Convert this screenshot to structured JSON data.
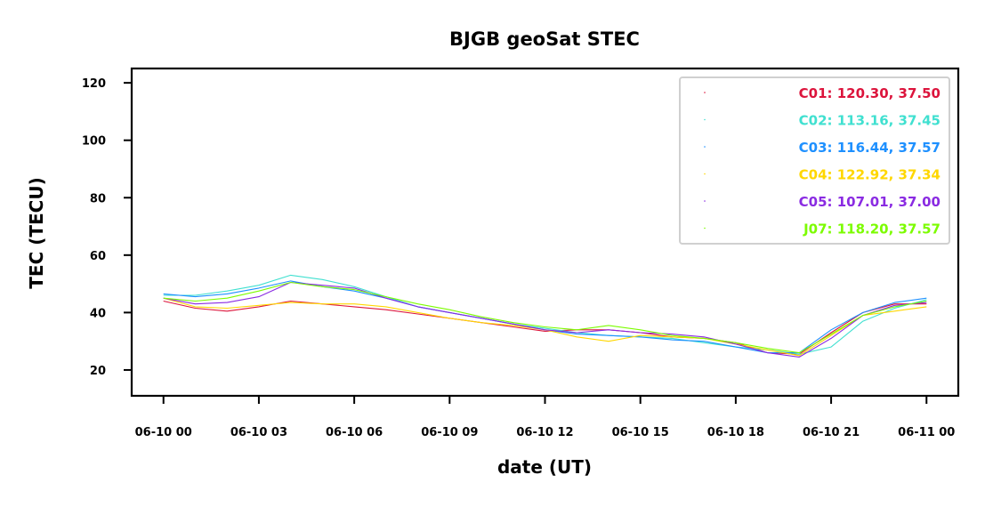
{
  "chart_data": {
    "type": "line",
    "title": "BJGB geoSat STEC",
    "xlabel": "date (UT)",
    "ylabel": "TEC (TECU)",
    "xlim": [
      "2023-06-09 23:00",
      "2023-06-11 01:00"
    ],
    "ylim": [
      11,
      125
    ],
    "x_ticks": [
      "06-10 00",
      "06-10 03",
      "06-10 06",
      "06-10 09",
      "06-10 12",
      "06-10 15",
      "06-10 18",
      "06-10 21",
      "06-11 00"
    ],
    "y_ticks": [
      20,
      40,
      60,
      80,
      100,
      120
    ],
    "legend_position": "top-right",
    "grid": false,
    "x": [
      "2023-06-10 00:00",
      "2023-06-10 01:00",
      "2023-06-10 02:00",
      "2023-06-10 03:00",
      "2023-06-10 04:00",
      "2023-06-10 05:00",
      "2023-06-10 06:00",
      "2023-06-10 07:00",
      "2023-06-10 08:00",
      "2023-06-10 09:00",
      "2023-06-10 10:00",
      "2023-06-10 11:00",
      "2023-06-10 12:00",
      "2023-06-10 13:00",
      "2023-06-10 14:00",
      "2023-06-10 15:00",
      "2023-06-10 16:00",
      "2023-06-10 17:00",
      "2023-06-10 18:00",
      "2023-06-10 19:00",
      "2023-06-10 20:00",
      "2023-06-10 21:00",
      "2023-06-10 22:00",
      "2023-06-10 23:00",
      "2023-06-11 00:00"
    ],
    "series": [
      {
        "name": "C01: 120.30,  37.50",
        "color": "#dc143c",
        "values": [
          44,
          41.5,
          40.5,
          42,
          44,
          43,
          42,
          41,
          39.5,
          38,
          36.5,
          35,
          33.5,
          34,
          34,
          33,
          31.5,
          31,
          29.5,
          26,
          25.5,
          33,
          40,
          43,
          43
        ]
      },
      {
        "name": "C02: 113.16,  37.45",
        "color": "#40e0d0",
        "values": [
          46,
          46,
          47.5,
          49.5,
          53,
          51.5,
          49,
          45.5,
          42,
          40,
          38,
          36,
          34.5,
          33,
          32,
          31.5,
          31,
          29.5,
          28,
          27,
          25.5,
          28,
          37,
          41.5,
          44.5
        ]
      },
      {
        "name": "C03: 116.44,  37.57",
        "color": "#1e90ff",
        "values": [
          46.5,
          45.5,
          46.5,
          48.5,
          51,
          49,
          47.5,
          45,
          42,
          40,
          38,
          36,
          34,
          32.5,
          32,
          31.5,
          30.5,
          30,
          28,
          26,
          26,
          34,
          40,
          43.5,
          45
        ]
      },
      {
        "name": "C04: 122.92,  37.34",
        "color": "#ffd700",
        "values": [
          45,
          42,
          41.5,
          42.5,
          43.5,
          43,
          43,
          42,
          40,
          38,
          36.5,
          35.5,
          34,
          31.5,
          30,
          32,
          31.5,
          31,
          29,
          27,
          25,
          32,
          39,
          40.5,
          42
        ]
      },
      {
        "name": "C05: 107.01,  37.00",
        "color": "#8a2be2",
        "values": [
          45,
          43,
          43.5,
          45.5,
          50.5,
          49.5,
          48.5,
          45,
          42,
          40,
          38,
          36,
          34,
          33,
          34,
          33,
          32.5,
          31.5,
          29,
          26,
          24.5,
          31,
          39,
          42.5,
          43.5
        ]
      },
      {
        "name": "J07: 118.20,  37.57",
        "color": "#7cfc00",
        "values": [
          45,
          44,
          45,
          47.5,
          50.5,
          49,
          48,
          45.5,
          43,
          41,
          38.5,
          36.5,
          35,
          34,
          35.5,
          34,
          32,
          31,
          29.5,
          27.5,
          26,
          32.5,
          39,
          42,
          44
        ]
      }
    ]
  }
}
